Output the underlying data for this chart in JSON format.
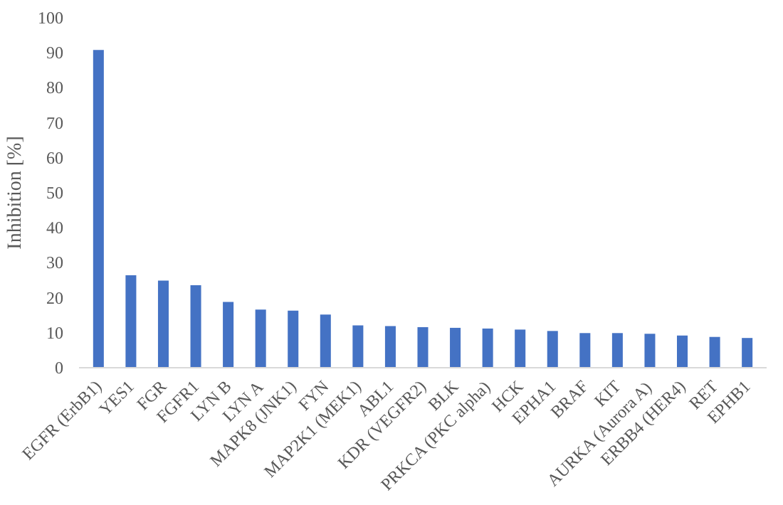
{
  "chart_data": {
    "type": "bar",
    "ylabel": "Inhibition [%]",
    "categories": [
      "EGFR (ErbB1)",
      "YES1",
      "FGR",
      "FGFR1",
      "LYN B",
      "LYN A",
      "MAPK8 (JNK1)",
      "FYN",
      "MAP2K1 (MEK1)",
      "ABL1",
      "KDR (VEGFR2)",
      "BLK",
      "PRKCA (PKC alpha)",
      "HCK",
      "EPHA1",
      "BRAF",
      "KIT",
      "AURKA (Aurora A)",
      "ERBB4 (HER4)",
      "RET",
      "EPHB1"
    ],
    "values": [
      90.8,
      26.4,
      24.9,
      23.6,
      18.8,
      16.6,
      16.3,
      15.2,
      12.1,
      11.9,
      11.6,
      11.4,
      11.2,
      10.9,
      10.5,
      9.9,
      9.9,
      9.7,
      9.2,
      8.8,
      8.5
    ],
    "color": "#4472c4",
    "ylim": [
      0,
      100
    ],
    "yticks": [
      0,
      10,
      20,
      30,
      40,
      50,
      60,
      70,
      80,
      90,
      100
    ],
    "grid": false
  }
}
